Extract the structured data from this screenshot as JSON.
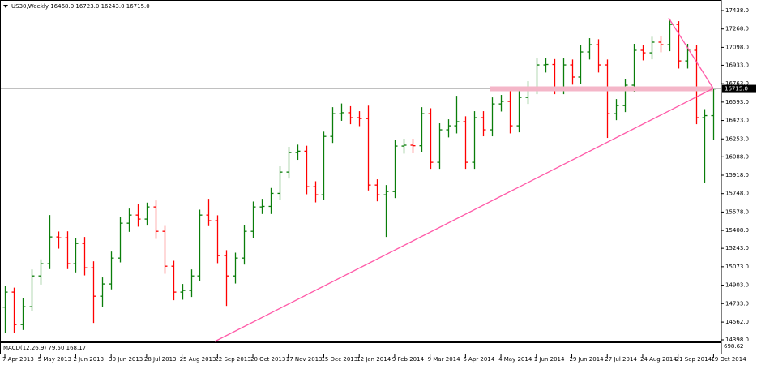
{
  "chart_data": {
    "type": "ohlc",
    "title": "US30,Weekly",
    "ohlc_labels": [
      "16468.0",
      "16723.0",
      "16243.0",
      "16715.0"
    ],
    "indicator_label": "MACD(12,26,9) 79.50 168.17",
    "indicator_tick": "698.62",
    "colors": {
      "up": "#0a7d0a",
      "down": "#ff0000"
    },
    "categories": [
      "7 Apr 2013",
      null,
      null,
      null,
      "5 May 2013",
      null,
      null,
      null,
      "2 Jun 2013",
      null,
      null,
      null,
      "30 Jun 2013",
      null,
      null,
      null,
      "28 Jul 2013",
      null,
      null,
      null,
      "25 Aug 2013",
      null,
      null,
      null,
      "22 Sep 2013",
      null,
      null,
      null,
      "20 Oct 2013",
      null,
      null,
      null,
      "17 Nov 2013",
      null,
      null,
      null,
      "15 Dec 2013",
      null,
      null,
      null,
      "12 Jan 2014",
      null,
      null,
      null,
      "9 Feb 2014",
      null,
      null,
      null,
      "9 Mar 2014",
      null,
      null,
      null,
      "6 Apr 2014",
      null,
      null,
      null,
      "4 May 2014",
      null,
      null,
      null,
      "1 Jun 2014",
      null,
      null,
      null,
      "29 Jun 2014",
      null,
      null,
      null,
      "27 Jul 2014",
      null,
      null,
      null,
      "24 Aug 2014",
      null,
      null,
      null,
      "21 Sep 2014",
      null,
      null,
      null,
      "19 Oct 2014"
    ],
    "open": [
      14700,
      14839,
      14539,
      14704,
      14988,
      15101,
      15348,
      15340,
      15101,
      15288,
      15063,
      14801,
      14914,
      15153,
      15475,
      15550,
      15513,
      15625,
      15400,
      15078,
      14839,
      14854,
      14988,
      15550,
      15498,
      15176,
      14988,
      15153,
      15400,
      15625,
      15630,
      15750,
      15947,
      16127,
      16140,
      15812,
      15737,
      16276,
      16486,
      16495,
      16449,
      16441,
      15827,
      15737,
      15767,
      16187,
      16195,
      16190,
      16486,
      16037,
      16337,
      16374,
      16412,
      16037,
      16449,
      16337,
      16576,
      16599,
      16374,
      16636,
      16726,
      16936,
      16940,
      16726,
      16936,
      16824,
      17056,
      17123,
      16936,
      16486,
      16561,
      16749,
      17071,
      17048,
      17146,
      17123,
      17310,
      16973,
      17071,
      16449,
      16468
    ],
    "high": [
      14899,
      14880,
      14784,
      15048,
      15141,
      15550,
      15398,
      15400,
      15338,
      15348,
      15123,
      14974,
      15213,
      15535,
      15610,
      15650,
      15665,
      15685,
      15450,
      15128,
      14914,
      15048,
      15600,
      15700,
      15548,
      15226,
      15203,
      15460,
      15675,
      15700,
      15800,
      16000,
      16180,
      16200,
      16190,
      15862,
      16320,
      16546,
      16580,
      16555,
      16509,
      16560,
      15880,
      15827,
      16247,
      16255,
      16255,
      16546,
      16536,
      16397,
      16434,
      16651,
      16462,
      16509,
      16509,
      16636,
      16659,
      16700,
      16696,
      16786,
      16996,
      17000,
      16990,
      16996,
      16986,
      17116,
      17183,
      17173,
      16986,
      16621,
      16809,
      17131,
      17121,
      17196,
      17206,
      17363,
      17340,
      17131,
      17121,
      16528,
      16723
    ],
    "low": [
      14460,
      14464,
      14489,
      14664,
      14908,
      15051,
      15240,
      15051,
      15021,
      14993,
      14554,
      14701,
      14864,
      15113,
      15395,
      15443,
      15453,
      15330,
      15008,
      14764,
      14769,
      14794,
      14938,
      15448,
      15106,
      14711,
      14918,
      15093,
      15340,
      15560,
      15560,
      15690,
      15887,
      16060,
      15742,
      15667,
      15687,
      16216,
      16420,
      16389,
      16371,
      15777,
      15677,
      15348,
      15707,
      16117,
      16120,
      16130,
      15977,
      15977,
      16267,
      16304,
      15977,
      15977,
      16277,
      16277,
      16506,
      16304,
      16314,
      16576,
      16666,
      16866,
      16666,
      16666,
      16754,
      16764,
      16986,
      16866,
      16262,
      16426,
      16501,
      16689,
      16978,
      16988,
      17053,
      17063,
      16903,
      16903,
      16389,
      15850,
      16243
    ],
    "close": [
      14839,
      14539,
      14704,
      14988,
      15101,
      15348,
      15340,
      15101,
      15288,
      15063,
      14801,
      14914,
      15153,
      15475,
      15550,
      15513,
      15625,
      15400,
      15078,
      14839,
      14854,
      14988,
      15550,
      15498,
      15176,
      14988,
      15153,
      15400,
      15625,
      15630,
      15750,
      15947,
      16127,
      16140,
      15812,
      15737,
      16276,
      16486,
      16495,
      16449,
      16441,
      15827,
      15737,
      15767,
      16187,
      16195,
      16190,
      16486,
      16037,
      16337,
      16374,
      16412,
      16037,
      16449,
      16337,
      16576,
      16599,
      16374,
      16636,
      16726,
      16936,
      16940,
      16726,
      16936,
      16824,
      17056,
      17123,
      16936,
      16486,
      16561,
      16749,
      17071,
      17048,
      17146,
      17123,
      17310,
      16973,
      17071,
      16449,
      16468,
      16715
    ],
    "ylim": [
      14398,
      17438
    ],
    "yticks": [
      {
        "value": 17438,
        "label": "17438.0"
      },
      {
        "value": 17268,
        "label": "17268.0"
      },
      {
        "value": 17098,
        "label": "17098.0"
      },
      {
        "value": 16933,
        "label": "16933.0"
      },
      {
        "value": 16763,
        "label": "16763.0"
      },
      {
        "value": 16593,
        "label": "16593.0"
      },
      {
        "value": 16423,
        "label": "16423.0"
      },
      {
        "value": 16253,
        "label": "16253.0"
      },
      {
        "value": 16088,
        "label": "16088.0"
      },
      {
        "value": 15918,
        "label": "15918.0"
      },
      {
        "value": 15748,
        "label": "15748.0"
      },
      {
        "value": 15578,
        "label": "15578.0"
      },
      {
        "value": 15408,
        "label": "15408.0"
      },
      {
        "value": 15243,
        "label": "15243.0"
      },
      {
        "value": 15073,
        "label": "15073.0"
      },
      {
        "value": 14903,
        "label": "14903.0"
      },
      {
        "value": 14733,
        "label": "14733.0"
      },
      {
        "value": 14562,
        "label": "14562.0"
      },
      {
        "value": 14398,
        "label": "14398.0"
      }
    ]
  }
}
